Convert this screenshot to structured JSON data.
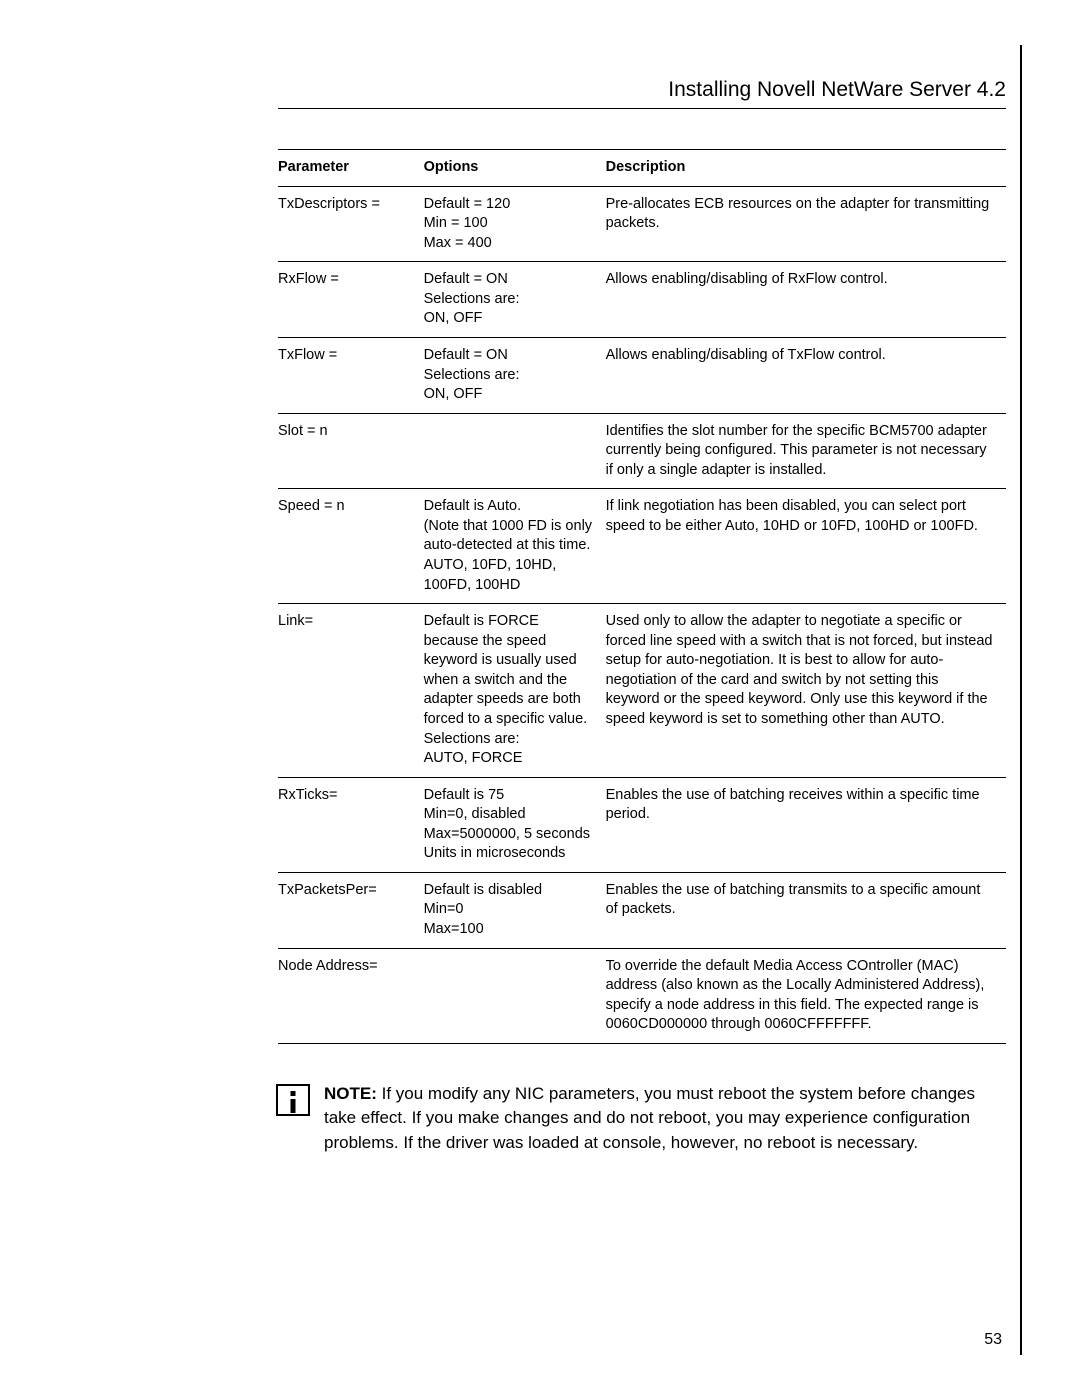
{
  "header": {
    "title": "Installing Novell NetWare Server 4.2"
  },
  "table": {
    "columns": [
      "Parameter",
      "Options",
      "Description"
    ],
    "rows": [
      {
        "parameter": "TxDescriptors =",
        "options": "Default = 120\nMin = 100\nMax = 400",
        "description": "Pre-allocates ECB resources on the adapter for transmitting packets."
      },
      {
        "parameter": "RxFlow =",
        "options": "Default = ON\nSelections are:\nON, OFF",
        "description": "Allows enabling/disabling of RxFlow control."
      },
      {
        "parameter": "TxFlow =",
        "options": "Default = ON\nSelections are:\nON, OFF",
        "description": "Allows enabling/disabling of TxFlow control."
      },
      {
        "parameter": "Slot = n",
        "options": "",
        "description": "Identifies the slot number for the specific BCM5700 adapter currently being configured. This parameter is not necessary if only a single adapter is installed."
      },
      {
        "parameter": "Speed = n",
        "options": "Default is Auto.\n(Note that 1000 FD is only auto-detected at this time.\nAUTO, 10FD, 10HD, 100FD, 100HD",
        "description": "If link negotiation has been disabled, you can select port speed to be either Auto, 10HD or 10FD, 100HD or 100FD."
      },
      {
        "parameter": "Link=",
        "options": "Default is FORCE because the speed keyword is usually used when a switch and the adapter speeds are both forced to a specific value.\nSelections are:\nAUTO, FORCE",
        "description": "Used only to allow the adapter to negotiate a specific or forced line speed with a switch that is not forced, but instead setup for auto-negotiation. It is best to allow for auto-negotiation of the card and switch by not setting this keyword or the speed keyword. Only use this keyword if the speed keyword is set to something other than AUTO."
      },
      {
        "parameter": "RxTicks=",
        "options": "Default is 75\nMin=0, disabled\nMax=5000000, 5 seconds\nUnits in microseconds",
        "description": "Enables the use of batching receives within a specific time period."
      },
      {
        "parameter": "TxPacketsPer=",
        "options": "Default is disabled\nMin=0\nMax=100",
        "description": "Enables the use of batching transmits to a specific amount of packets."
      },
      {
        "parameter": "Node Address=",
        "options": "",
        "description": "To override the default Media Access COntroller (MAC) address (also known as the Locally Administered Address), specify a node address in this field. The expected range is 0060CD000000 through 0060CFFFFFFF."
      }
    ]
  },
  "note": {
    "label": "NOTE:",
    "text": " If you modify any NIC parameters, you must reboot the system before changes take effect. If you make changes and do not reboot, you may experience configuration problems. If the driver was loaded at console, however, no reboot is necessary."
  },
  "page_number": "53"
}
